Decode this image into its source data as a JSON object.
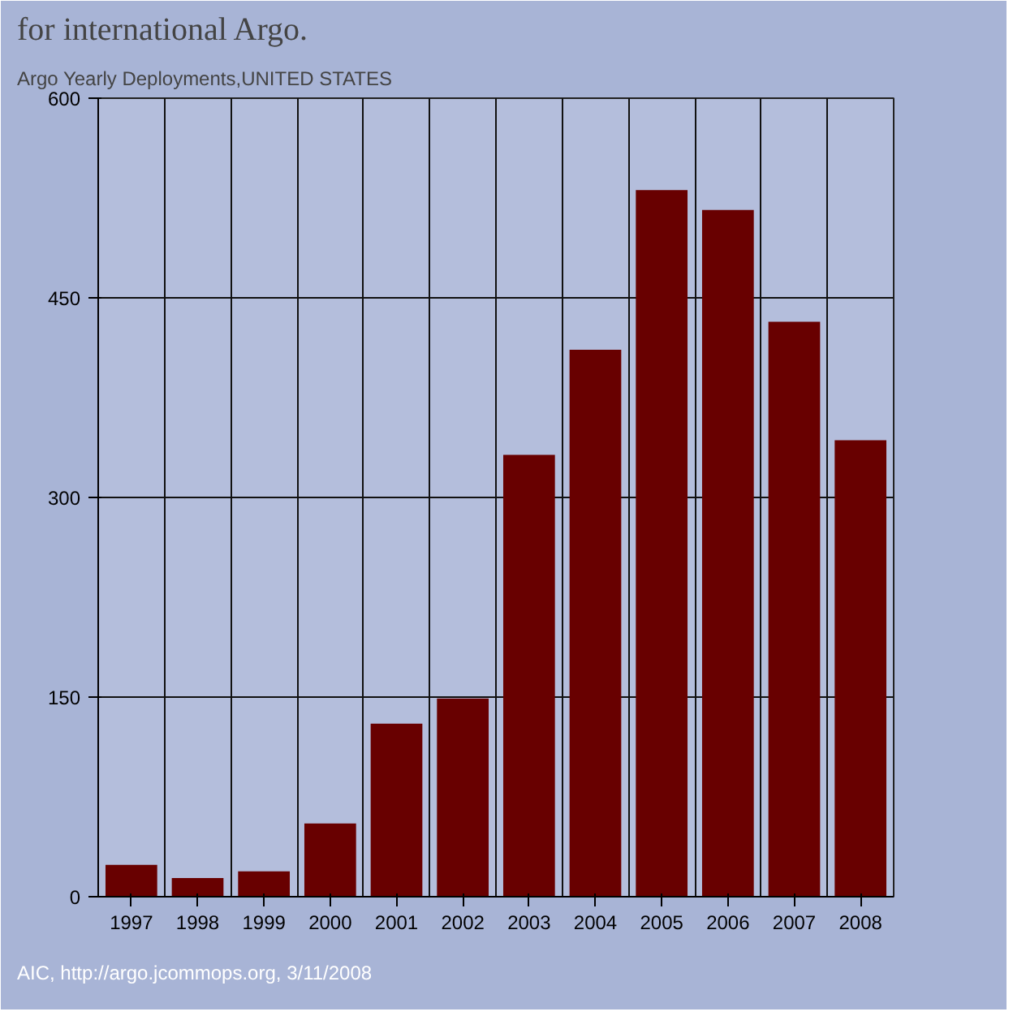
{
  "chart_data": {
    "type": "bar",
    "title": "Argo Yearly Deployments,UNITED STATES",
    "categories": [
      "1997",
      "1998",
      "1999",
      "2000",
      "2001",
      "2002",
      "2003",
      "2004",
      "2005",
      "2006",
      "2007",
      "2008"
    ],
    "values": [
      24,
      14,
      19,
      55,
      130,
      149,
      332,
      411,
      531,
      516,
      432,
      343
    ],
    "color": "#680000",
    "ylim": [
      0,
      600
    ],
    "yticks": [
      0,
      150,
      300,
      450,
      600
    ],
    "grid": true,
    "annotations": [
      "for international Argo.",
      "AIC, http://argo.jcommops.org, 3/11/2008"
    ]
  }
}
